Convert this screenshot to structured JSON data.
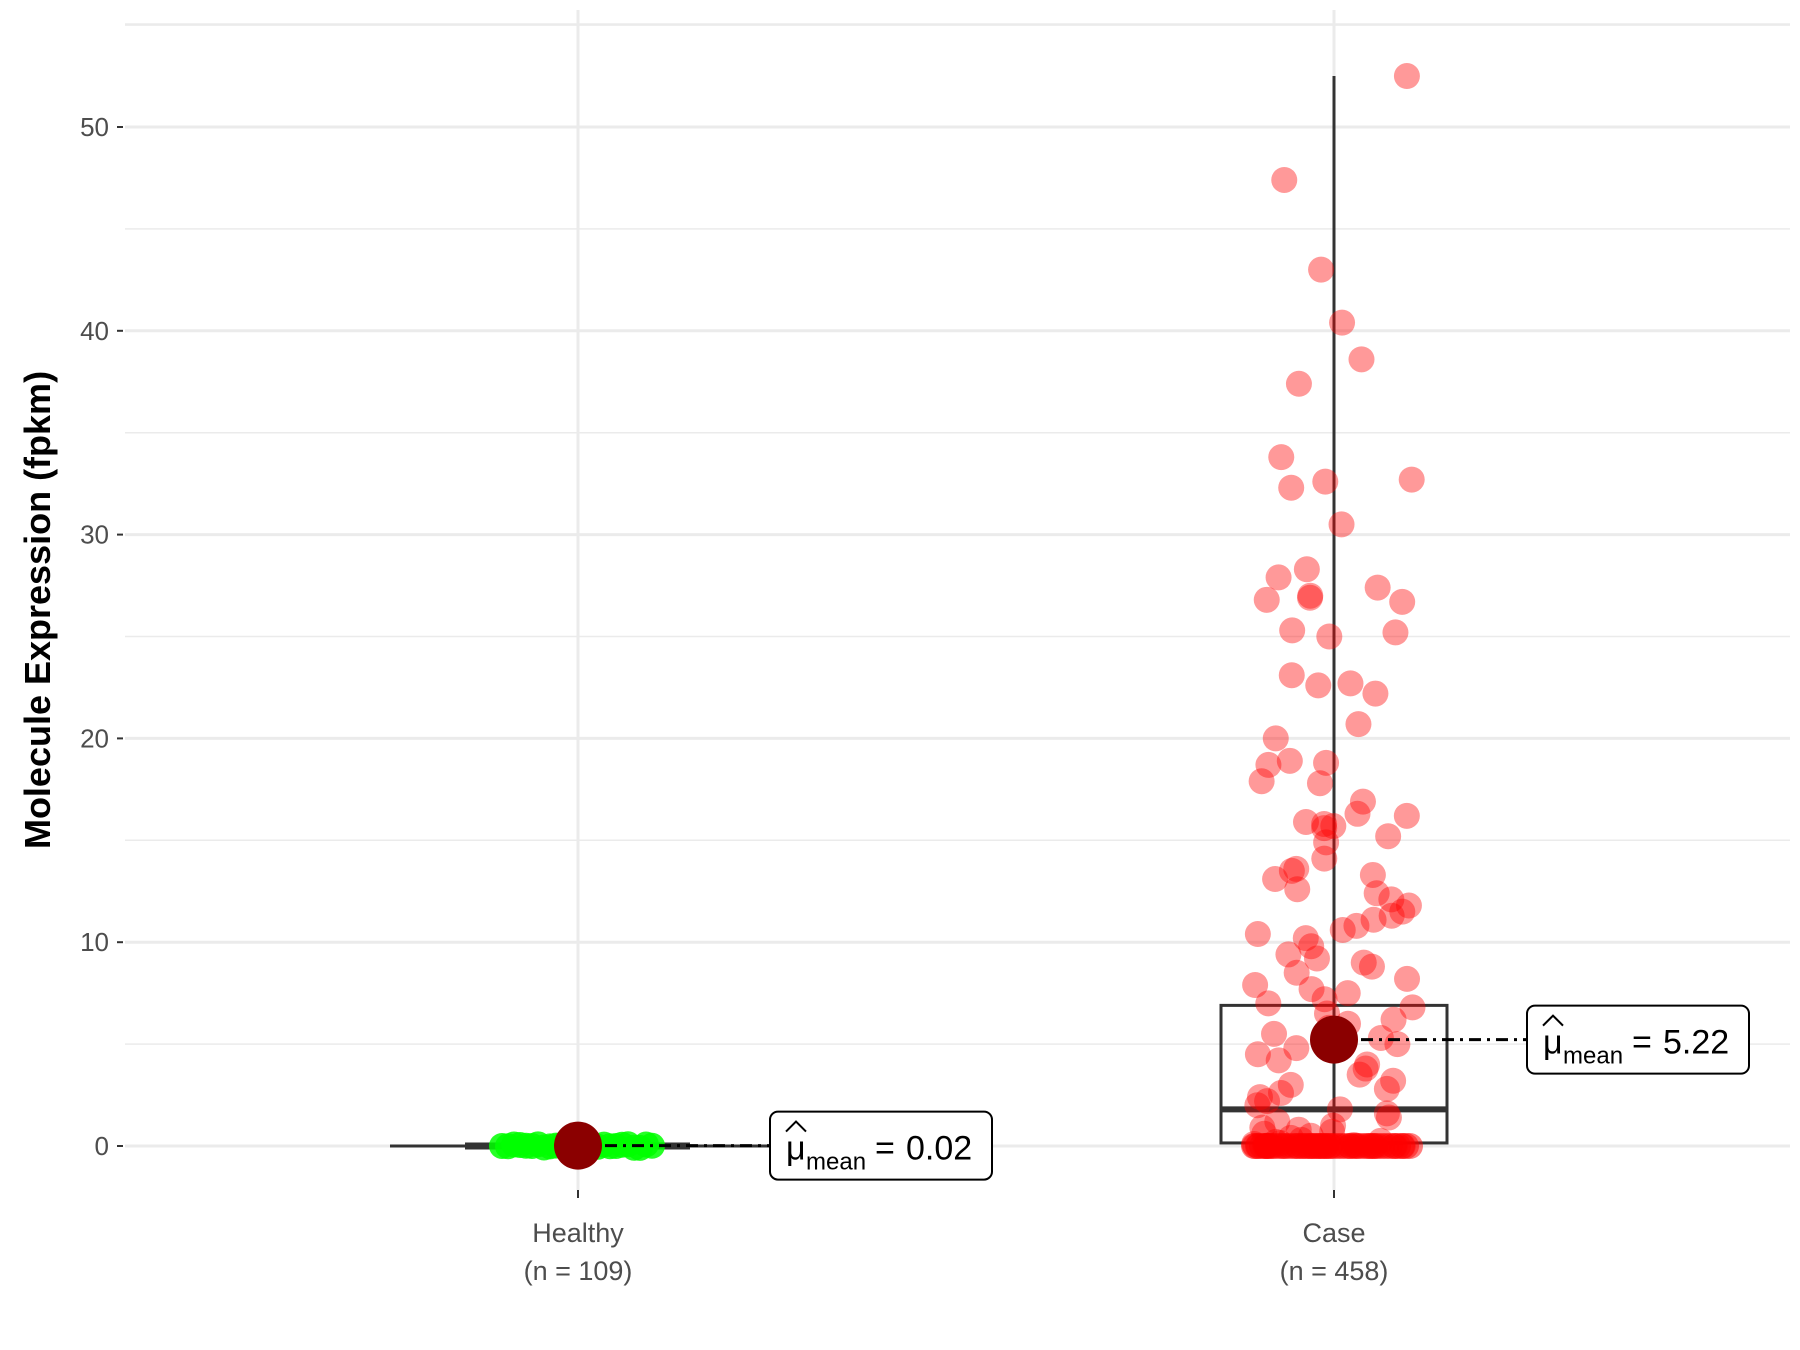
{
  "chart_data": {
    "type": "box-violin-scatter",
    "ylabel": "Molecule Expression (fpkm)",
    "xlabel": "",
    "ylim": [
      -5,
      55
    ],
    "yticks": [
      0,
      10,
      20,
      30,
      40,
      50
    ],
    "grid": true,
    "groups": [
      {
        "name": "Healthy",
        "n_label": "(n = 109)",
        "color": "#00ff00",
        "box": {
          "min": 0.0,
          "q1": 0.0,
          "median": 0.0,
          "q3": 0.05,
          "max": 0.3
        },
        "mean": 0.02,
        "mean_label": "0.02",
        "points": [
          0,
          0,
          0,
          0,
          0,
          0,
          0,
          0,
          0,
          0,
          0.01,
          0.02,
          0.05,
          0.1,
          0.12,
          0.15,
          0.2,
          0.25
        ]
      },
      {
        "name": "Case",
        "n_label": "(n = 458)",
        "color": "#ff0000",
        "box": {
          "min": 0.0,
          "q1": 0.15,
          "median": 1.8,
          "q3": 6.9,
          "max": 52.5
        },
        "mean": 5.22,
        "mean_label": "5.22",
        "points": [
          52.5,
          47.4,
          43.0,
          40.4,
          38.6,
          37.4,
          33.8,
          32.7,
          32.6,
          32.3,
          30.5,
          28.3,
          27.9,
          27.4,
          27.0,
          26.9,
          26.8,
          26.7,
          25.3,
          25.2,
          25.0,
          23.1,
          22.7,
          22.6,
          22.2,
          20.7,
          20.0,
          18.9,
          18.8,
          18.7,
          17.9,
          17.8,
          16.9,
          16.3,
          16.2,
          15.9,
          15.8,
          15.7,
          15.6,
          15.2,
          14.9,
          14.1,
          13.6,
          13.5,
          13.3,
          13.1,
          12.6,
          12.4,
          12.1,
          11.8,
          11.5,
          11.3,
          11.1,
          10.8,
          10.6,
          10.4,
          10.2,
          9.8,
          9.4,
          9.2,
          9.0,
          8.8,
          8.5,
          8.2,
          7.9,
          7.7,
          7.5,
          7.2,
          7.0,
          6.8,
          6.5,
          6.2,
          6.0,
          5.8,
          5.5,
          5.3,
          5.0,
          4.8,
          4.5,
          4.2,
          4.0,
          3.8,
          3.5,
          3.2,
          3.0,
          2.8,
          2.6,
          2.4,
          2.2,
          2.0,
          1.8,
          1.6,
          1.4,
          1.2,
          1.0,
          0.9,
          0.8,
          0.7,
          0.6,
          0.5,
          0.4,
          0.3,
          0.25,
          0.2,
          0.15,
          0.1,
          0.05,
          0.02,
          0,
          0,
          0,
          0,
          0,
          0,
          0,
          0,
          0,
          0,
          0,
          0,
          0,
          0,
          0,
          0,
          0,
          0,
          0,
          0,
          0,
          0,
          0,
          0
        ]
      }
    ]
  }
}
